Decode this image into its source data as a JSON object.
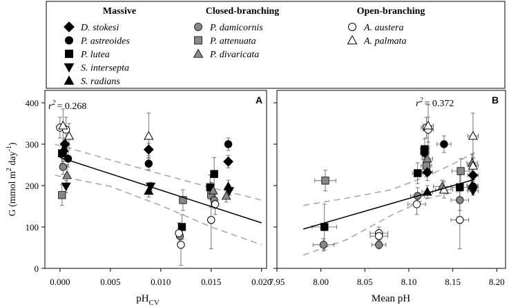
{
  "legend": {
    "groups": [
      {
        "title": "Massive",
        "items": [
          {
            "label": "D. stokesi",
            "marker": "diamond",
            "fill": "#000000"
          },
          {
            "label": "P. astreoides",
            "marker": "circle",
            "fill": "#000000"
          },
          {
            "label": "P. lutea",
            "marker": "square",
            "fill": "#000000"
          },
          {
            "label": "S. intersepta",
            "marker": "triangle-down",
            "fill": "#000000"
          },
          {
            "label": "S. radians",
            "marker": "triangle-up",
            "fill": "#000000"
          }
        ]
      },
      {
        "title": "Closed-branching",
        "items": [
          {
            "label": "P. damicornis",
            "marker": "circle",
            "fill": "#888888"
          },
          {
            "label": "P. attenuata",
            "marker": "square",
            "fill": "#888888"
          },
          {
            "label": "P. divaricata",
            "marker": "triangle-up",
            "fill": "#888888"
          }
        ]
      },
      {
        "title": "Open-branching",
        "items": [
          {
            "label": "A. austera",
            "marker": "circle",
            "fill": "#ffffff"
          },
          {
            "label": "A. palmata",
            "marker": "triangle-up",
            "fill": "#ffffff"
          }
        ]
      }
    ]
  },
  "chart_data": [
    {
      "type": "scatter",
      "panel_label": "A",
      "annotation": {
        "r": "r",
        "sup": "2",
        "value": "= 0.268"
      },
      "xlabel": {
        "main": "pH",
        "sub": "CV"
      },
      "ylabel": {
        "prefix": "G (mmol m",
        "sup1": "2",
        "mid": " day",
        "sup2": "-1",
        "suffix": ")"
      },
      "xlim": [
        -0.0015,
        0.0205
      ],
      "ylim": [
        0,
        430
      ],
      "xticks": [
        "0.000",
        "0.005",
        "0.010",
        "0.015",
        "0.020"
      ],
      "xtick_values": [
        0,
        0.005,
        0.01,
        0.015,
        0.02
      ],
      "yticks": [
        "0",
        "100",
        "200",
        "300",
        "400"
      ],
      "ytick_values": [
        0,
        100,
        200,
        300,
        400
      ],
      "fit_line": {
        "x": [
          0,
          0.02
        ],
        "y": [
          268,
          110
        ]
      },
      "ci_upper": [
        [
          -0.0005,
          300
        ],
        [
          0.005,
          262
        ],
        [
          0.01,
          228
        ],
        [
          0.015,
          195
        ],
        [
          0.02,
          165
        ]
      ],
      "ci_lower": [
        [
          -0.0005,
          225
        ],
        [
          0.005,
          198
        ],
        [
          0.01,
          152
        ],
        [
          0.015,
          100
        ],
        [
          0.02,
          57
        ]
      ],
      "points": [
        {
          "marker": "diamond",
          "fill": "#000000",
          "x": 0.0005,
          "y": 300,
          "ey": 15
        },
        {
          "marker": "circle",
          "fill": "#000000",
          "x": 0.0003,
          "y": 278,
          "ey": 20
        },
        {
          "marker": "circle",
          "fill": "#000000",
          "x": 0.0008,
          "y": 265,
          "ey": 20
        },
        {
          "marker": "square",
          "fill": "#000000",
          "x": 0.0002,
          "y": 278,
          "ey": 25
        },
        {
          "marker": "triangle-down",
          "fill": "#000000",
          "x": 0.0006,
          "y": 198,
          "ey": 15
        },
        {
          "marker": "triangle-up",
          "fill": "#000000",
          "x": 0.0004,
          "y": 290,
          "ey": 20
        },
        {
          "marker": "circle",
          "fill": "#888888",
          "x": 0.0003,
          "y": 245,
          "ey": 18
        },
        {
          "marker": "square",
          "fill": "#888888",
          "x": 0.0002,
          "y": 177,
          "ey": 25
        },
        {
          "marker": "triangle-up",
          "fill": "#888888",
          "x": 0.0007,
          "y": 225,
          "ey": 25
        },
        {
          "marker": "circle",
          "fill": "#ffffff",
          "x": 0.0,
          "y": 340,
          "ey": 25
        },
        {
          "marker": "circle",
          "fill": "#ffffff",
          "x": 0.0006,
          "y": 335,
          "ey": 30
        },
        {
          "marker": "triangle-up",
          "fill": "#ffffff",
          "x": 0.0003,
          "y": 345,
          "ey": 40
        },
        {
          "marker": "triangle-up",
          "fill": "#ffffff",
          "x": 0.0009,
          "y": 320,
          "ey": 30
        },
        {
          "marker": "diamond",
          "fill": "#000000",
          "x": 0.0088,
          "y": 287,
          "ey": 15
        },
        {
          "marker": "circle",
          "fill": "#000000",
          "x": 0.0088,
          "y": 253,
          "ey": 15
        },
        {
          "marker": "triangle-up",
          "fill": "#000000",
          "x": 0.0088,
          "y": 187,
          "ey": 15
        },
        {
          "marker": "triangle-down",
          "fill": "#000000",
          "x": 0.009,
          "y": 198,
          "ey": 10
        },
        {
          "marker": "triangle-up",
          "fill": "#ffffff",
          "x": 0.0088,
          "y": 320,
          "ey": 55
        },
        {
          "marker": "square",
          "fill": "#000000",
          "x": 0.0121,
          "y": 100,
          "ey": 30
        },
        {
          "marker": "square",
          "fill": "#888888",
          "x": 0.0122,
          "y": 165,
          "ey": 25
        },
        {
          "marker": "circle",
          "fill": "#888888",
          "x": 0.0119,
          "y": 78,
          "ey": 20
        },
        {
          "marker": "circle",
          "fill": "#ffffff",
          "x": 0.0118,
          "y": 85,
          "ey": 25
        },
        {
          "marker": "circle",
          "fill": "#ffffff",
          "x": 0.012,
          "y": 57,
          "ey": 50
        },
        {
          "marker": "square",
          "fill": "#000000",
          "x": 0.0149,
          "y": 196,
          "ey": 30
        },
        {
          "marker": "square",
          "fill": "#000000",
          "x": 0.0153,
          "y": 228,
          "ey": 40
        },
        {
          "marker": "square",
          "fill": "#888888",
          "x": 0.015,
          "y": 178,
          "ey": 30
        },
        {
          "marker": "circle",
          "fill": "#888888",
          "x": 0.0153,
          "y": 165,
          "ey": 20
        },
        {
          "marker": "circle",
          "fill": "#ffffff",
          "x": 0.0154,
          "y": 155,
          "ey": 25
        },
        {
          "marker": "circle",
          "fill": "#ffffff",
          "x": 0.015,
          "y": 117,
          "ey": 70
        },
        {
          "marker": "triangle-up",
          "fill": "#888888",
          "x": 0.0152,
          "y": 188,
          "ey": 15
        },
        {
          "marker": "circle",
          "fill": "#000000",
          "x": 0.0167,
          "y": 300,
          "ey": 15
        },
        {
          "marker": "diamond",
          "fill": "#000000",
          "x": 0.0167,
          "y": 258,
          "ey": 15
        },
        {
          "marker": "triangle-up",
          "fill": "#000000",
          "x": 0.0167,
          "y": 198,
          "ey": 15
        },
        {
          "marker": "triangle-down",
          "fill": "#000000",
          "x": 0.0168,
          "y": 187,
          "ey": 10
        },
        {
          "marker": "triangle-up",
          "fill": "#888888",
          "x": 0.0165,
          "y": 175,
          "ey": 15
        }
      ]
    },
    {
      "type": "scatter",
      "panel_label": "B",
      "annotation": {
        "r": "r",
        "sup": "2",
        "value": "= 0.372"
      },
      "xlabel": {
        "main": "Mean pH",
        "sub": ""
      },
      "xlim": [
        7.95,
        8.21
      ],
      "ylim": [
        0,
        430
      ],
      "xticks": [
        "7.95",
        "8.00",
        "8.05",
        "8.10",
        "8.15",
        "8.20"
      ],
      "xtick_values": [
        7.95,
        8.0,
        8.05,
        8.1,
        8.15,
        8.2
      ],
      "fit_line": {
        "x": [
          7.98,
          8.175
        ],
        "y": [
          95,
          215
        ]
      },
      "ci_upper": [
        [
          7.98,
          152
        ],
        [
          8.03,
          170
        ],
        [
          8.08,
          190
        ],
        [
          8.12,
          222
        ],
        [
          8.15,
          252
        ],
        [
          8.175,
          280
        ]
      ],
      "ci_lower": [
        [
          7.98,
          32
        ],
        [
          8.03,
          70
        ],
        [
          8.08,
          128
        ],
        [
          8.12,
          168
        ],
        [
          8.15,
          183
        ],
        [
          8.175,
          192
        ]
      ],
      "points": [
        {
          "marker": "square",
          "fill": "#888888",
          "x": 8.005,
          "y": 212,
          "ex": 0.012,
          "ey": 25
        },
        {
          "marker": "square",
          "fill": "#000000",
          "x": 8.004,
          "y": 100,
          "ex": 0.014,
          "ey": 55
        },
        {
          "marker": "circle",
          "fill": "#888888",
          "x": 8.003,
          "y": 57,
          "ex": 0.012,
          "ey": 15
        },
        {
          "marker": "circle",
          "fill": "#ffffff",
          "x": 8.066,
          "y": 85,
          "ex": 0.01,
          "ey": 15
        },
        {
          "marker": "circle",
          "fill": "#ffffff",
          "x": 8.066,
          "y": 78,
          "ex": 0.01,
          "ey": 15
        },
        {
          "marker": "circle",
          "fill": "#888888",
          "x": 8.066,
          "y": 57,
          "ex": 0.008,
          "ey": 10
        },
        {
          "marker": "square",
          "fill": "#000000",
          "x": 8.11,
          "y": 230,
          "ex": 0.006,
          "ey": 25
        },
        {
          "marker": "circle",
          "fill": "#888888",
          "x": 8.11,
          "y": 175,
          "ex": 0.008,
          "ey": 20
        },
        {
          "marker": "circle",
          "fill": "#ffffff",
          "x": 8.109,
          "y": 155,
          "ex": 0.01,
          "ey": 25
        },
        {
          "marker": "circle",
          "fill": "#000000",
          "x": 8.118,
          "y": 278,
          "ex": 0.005,
          "ey": 15
        },
        {
          "marker": "square",
          "fill": "#000000",
          "x": 8.118,
          "y": 288,
          "ex": 0.005,
          "ey": 25
        },
        {
          "marker": "circle",
          "fill": "#ffffff",
          "x": 8.12,
          "y": 340,
          "ex": 0.006,
          "ey": 25
        },
        {
          "marker": "circle",
          "fill": "#ffffff",
          "x": 8.122,
          "y": 335,
          "ex": 0.006,
          "ey": 30
        },
        {
          "marker": "triangle-up",
          "fill": "#ffffff",
          "x": 8.122,
          "y": 345,
          "ex": 0.006,
          "ey": 50
        },
        {
          "marker": "triangle-up",
          "fill": "#888888",
          "x": 8.121,
          "y": 265,
          "ex": 0.006,
          "ey": 25
        },
        {
          "marker": "square",
          "fill": "#888888",
          "x": 8.12,
          "y": 248,
          "ex": 0.006,
          "ey": 20
        },
        {
          "marker": "diamond",
          "fill": "#000000",
          "x": 8.121,
          "y": 232,
          "ex": 0.006,
          "ey": 20
        },
        {
          "marker": "triangle-up",
          "fill": "#000000",
          "x": 8.121,
          "y": 185,
          "ex": 0.006,
          "ey": 15
        },
        {
          "marker": "circle",
          "fill": "#000000",
          "x": 8.14,
          "y": 300,
          "ex": 0.008,
          "ey": 20
        },
        {
          "marker": "triangle-up",
          "fill": "#888888",
          "x": 8.138,
          "y": 198,
          "ex": 0.01,
          "ey": 15
        },
        {
          "marker": "triangle-up",
          "fill": "#ffffff",
          "x": 8.14,
          "y": 190,
          "ex": 0.01,
          "ey": 20
        },
        {
          "marker": "square",
          "fill": "#000000",
          "x": 8.158,
          "y": 196,
          "ex": 0.01,
          "ey": 30
        },
        {
          "marker": "square",
          "fill": "#888888",
          "x": 8.159,
          "y": 235,
          "ex": 0.01,
          "ey": 30
        },
        {
          "marker": "circle",
          "fill": "#888888",
          "x": 8.158,
          "y": 165,
          "ex": 0.01,
          "ey": 25
        },
        {
          "marker": "circle",
          "fill": "#ffffff",
          "x": 8.158,
          "y": 117,
          "ex": 0.01,
          "ey": 70
        },
        {
          "marker": "triangle-up",
          "fill": "#ffffff",
          "x": 8.173,
          "y": 320,
          "ex": 0.006,
          "ey": 55
        },
        {
          "marker": "triangle-up",
          "fill": "#888888",
          "x": 8.172,
          "y": 255,
          "ex": 0.006,
          "ey": 20
        },
        {
          "marker": "triangle-up",
          "fill": "#ffffff",
          "x": 8.173,
          "y": 248,
          "ex": 0.006,
          "ey": 20
        },
        {
          "marker": "diamond",
          "fill": "#000000",
          "x": 8.173,
          "y": 225,
          "ex": 0.006,
          "ey": 15
        },
        {
          "marker": "triangle-up",
          "fill": "#000000",
          "x": 8.172,
          "y": 200,
          "ex": 0.006,
          "ey": 15
        },
        {
          "marker": "triangle-down",
          "fill": "#000000",
          "x": 8.173,
          "y": 187,
          "ex": 0.006,
          "ey": 10
        },
        {
          "marker": "circle",
          "fill": "#000000",
          "x": 8.173,
          "y": 198,
          "ex": 0.006,
          "ey": 12
        }
      ]
    }
  ]
}
